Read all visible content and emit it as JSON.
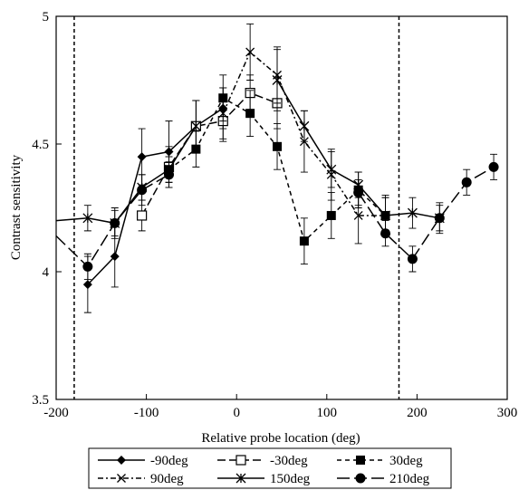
{
  "chart_data": {
    "type": "line",
    "title": "",
    "xlabel": "Relative probe location (deg)",
    "ylabel": "Contrast sensitivity",
    "xlim": [
      -200,
      300
    ],
    "ylim": [
      3.5,
      5
    ],
    "xticks": [
      -200,
      -100,
      0,
      100,
      200,
      300
    ],
    "yticks": [
      3.5,
      4,
      4.5,
      5
    ],
    "ytick_labels": [
      "3.5",
      "4",
      "4.5",
      "5"
    ],
    "grid": false,
    "legend_position": "bottom",
    "vlines": [
      -180,
      180
    ],
    "series": [
      {
        "name": "-90deg",
        "marker": "diamond",
        "dash": "",
        "x": [
          -165,
          -135,
          -105,
          -75,
          -45,
          -15
        ],
        "y": [
          3.95,
          4.06,
          4.45,
          4.47,
          4.57,
          4.64
        ],
        "err": [
          0.11,
          0.12,
          0.11,
          0.12,
          0.1,
          0.08
        ]
      },
      {
        "name": "-30deg",
        "marker": "open-square",
        "dash": "9 4",
        "x": [
          -105,
          -75,
          -45,
          -15,
          15,
          45
        ],
        "y": [
          4.22,
          4.41,
          4.57,
          4.59,
          4.7,
          4.66
        ],
        "err": [
          0.06,
          0.08,
          0.1,
          0.08,
          0.07,
          0.1
        ]
      },
      {
        "name": "30deg",
        "marker": "filled-square",
        "dash": "5 4",
        "x": [
          -75,
          -45,
          -15,
          15,
          45,
          75,
          105,
          135,
          165
        ],
        "y": [
          4.4,
          4.48,
          4.68,
          4.62,
          4.49,
          4.12,
          4.22,
          4.32,
          4.22
        ],
        "err": [
          0.05,
          0.07,
          0.09,
          0.09,
          0.09,
          0.09,
          0.09,
          0.07,
          0.07
        ]
      },
      {
        "name": "90deg",
        "marker": "x",
        "dash": "6 3 2 3",
        "x": [
          -15,
          15,
          45,
          75,
          105,
          135,
          165
        ],
        "y": [
          4.62,
          4.86,
          4.77,
          4.51,
          4.38,
          4.22,
          4.22
        ],
        "err": [
          0.1,
          0.11,
          0.11,
          0.12,
          0.1,
          0.11,
          0.08
        ]
      },
      {
        "name": "150deg",
        "marker": "asterisk",
        "dash": "",
        "x": [
          45,
          75,
          105,
          135,
          165,
          195,
          225
        ],
        "y": [
          4.75,
          4.57,
          4.4,
          4.34,
          4.22,
          4.23,
          4.21
        ],
        "err": [
          0.12,
          0.06,
          0.07,
          0.05,
          0.07,
          0.06,
          0.06
        ]
      },
      {
        "name": "210deg",
        "marker": "circle",
        "dash": "14 5",
        "x": [
          135,
          165,
          195,
          225,
          255,
          285
        ],
        "y": [
          4.31,
          4.15,
          4.05,
          4.21,
          4.35,
          4.41
        ],
        "err": [
          0.05,
          0.05,
          0.05,
          0.05,
          0.05,
          0.05
        ]
      }
    ],
    "wrap_segments": [
      {
        "series": "150deg",
        "from": [
          -200,
          4.2
        ],
        "x": [
          -165,
          -135,
          -105,
          -75,
          -45
        ],
        "y": [
          4.21,
          4.19,
          4.33,
          4.4,
          4.57
        ],
        "err": [
          0.05,
          0.05,
          0.05,
          0.05,
          0.1
        ]
      },
      {
        "series": "210deg",
        "from": [
          -200,
          4.14
        ],
        "x": [
          -165,
          -135,
          -105,
          -75
        ],
        "y": [
          4.02,
          4.19,
          4.32,
          4.38
        ],
        "err": [
          0.05,
          0.06,
          0.06,
          0.05
        ]
      }
    ]
  }
}
